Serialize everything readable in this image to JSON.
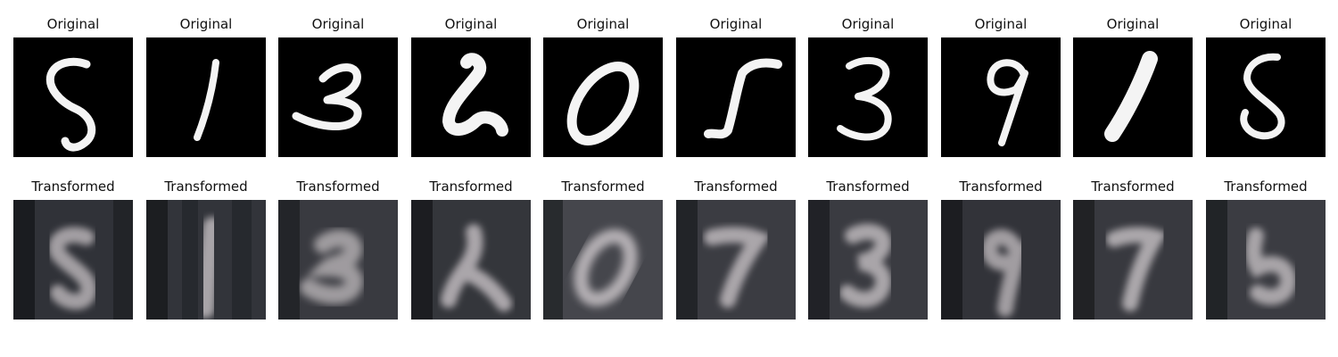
{
  "rows": [
    {
      "title": "Original",
      "cells": [
        {
          "title": "Original",
          "digit": "5"
        },
        {
          "title": "Original",
          "digit": "1"
        },
        {
          "title": "Original",
          "digit": "3"
        },
        {
          "title": "Original",
          "digit": "2"
        },
        {
          "title": "Original",
          "digit": "0"
        },
        {
          "title": "Original",
          "digit": "5"
        },
        {
          "title": "Original",
          "digit": "3"
        },
        {
          "title": "Original",
          "digit": "9"
        },
        {
          "title": "Original",
          "digit": "1"
        },
        {
          "title": "Original",
          "digit": "5"
        }
      ]
    },
    {
      "title": "Transformed",
      "cells": [
        {
          "title": "Transformed",
          "digit": "5"
        },
        {
          "title": "Transformed",
          "digit": "1"
        },
        {
          "title": "Transformed",
          "digit": "3"
        },
        {
          "title": "Transformed",
          "digit": "2"
        },
        {
          "title": "Transformed",
          "digit": "0"
        },
        {
          "title": "Transformed",
          "digit": "7"
        },
        {
          "title": "Transformed",
          "digit": "3"
        },
        {
          "title": "Transformed",
          "digit": "9"
        },
        {
          "title": "Transformed",
          "digit": "7"
        },
        {
          "title": "Transformed",
          "digit": "5"
        }
      ]
    }
  ],
  "colors": {
    "original_background": "#000000",
    "original_stroke": "#f4f4f4",
    "transformed_background": "#303238",
    "transformed_stroke": "#a39fa3"
  }
}
